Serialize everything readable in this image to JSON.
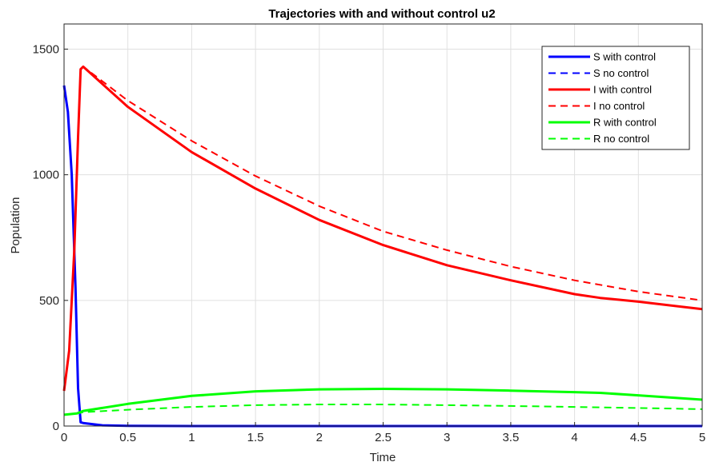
{
  "chart_data": {
    "type": "line",
    "title": "Trajectories with and without control u2",
    "xlabel": "Time",
    "ylabel": "Population",
    "xlim": [
      0,
      5
    ],
    "ylim": [
      0,
      1600
    ],
    "xticks": [
      0,
      0.5,
      1,
      1.5,
      2,
      2.5,
      3,
      3.5,
      4,
      4.5,
      5
    ],
    "xtick_labels": [
      "0",
      "0.5",
      "1",
      "1.5",
      "2",
      "2.5",
      "3",
      "3.5",
      "4",
      "4.5",
      "5"
    ],
    "yticks": [
      0,
      500,
      1000,
      1500
    ],
    "ytick_labels": [
      "0",
      "500",
      "1000",
      "1500"
    ],
    "grid": true,
    "legend_position": "top-right",
    "series": [
      {
        "name": "S with control",
        "color": "#0000ff",
        "style": "solid",
        "x": [
          0,
          0.03,
          0.06,
          0.09,
          0.11,
          0.13,
          0.15,
          0.3,
          0.5,
          1,
          5
        ],
        "y": [
          1355,
          1250,
          1000,
          550,
          150,
          15,
          12,
          3,
          1,
          0,
          0
        ]
      },
      {
        "name": "S no control",
        "color": "#0000ff",
        "style": "dashed",
        "x": [
          0,
          0.03,
          0.06,
          0.09,
          0.11,
          0.13,
          0.15,
          0.3,
          0.5,
          1,
          5
        ],
        "y": [
          1355,
          1250,
          1000,
          550,
          150,
          15,
          12,
          3,
          1,
          0,
          0
        ]
      },
      {
        "name": "I with control",
        "color": "#ff0000",
        "style": "solid",
        "x": [
          0,
          0.04,
          0.08,
          0.11,
          0.13,
          0.15,
          0.5,
          1,
          1.5,
          2,
          2.5,
          3,
          3.5,
          4,
          4.2,
          4.5,
          5
        ],
        "y": [
          140,
          300,
          700,
          1150,
          1420,
          1430,
          1270,
          1090,
          945,
          820,
          720,
          640,
          580,
          525,
          510,
          495,
          465
        ]
      },
      {
        "name": "I no control",
        "color": "#ff0000",
        "style": "dashed",
        "x": [
          0,
          0.04,
          0.08,
          0.11,
          0.13,
          0.15,
          0.5,
          1,
          1.5,
          2,
          2.5,
          3,
          3.5,
          4,
          4.5,
          5
        ],
        "y": [
          140,
          300,
          700,
          1150,
          1420,
          1430,
          1295,
          1135,
          995,
          875,
          775,
          700,
          635,
          580,
          535,
          500
        ]
      },
      {
        "name": "R with control",
        "color": "#00ff00",
        "style": "solid",
        "x": [
          0,
          0.1,
          0.15,
          0.5,
          1,
          1.5,
          2,
          2.5,
          3,
          3.5,
          4,
          4.2,
          4.5,
          5
        ],
        "y": [
          45,
          50,
          60,
          88,
          120,
          138,
          146,
          148,
          146,
          141,
          135,
          132,
          122,
          105
        ]
      },
      {
        "name": "R no control",
        "color": "#00ff00",
        "style": "dashed",
        "x": [
          0,
          0.1,
          0.15,
          0.5,
          1,
          1.5,
          2,
          2.5,
          3,
          3.5,
          4,
          4.5,
          5
        ],
        "y": [
          45,
          50,
          55,
          65,
          76,
          83,
          86,
          86,
          83,
          80,
          76,
          72,
          67
        ]
      }
    ]
  }
}
